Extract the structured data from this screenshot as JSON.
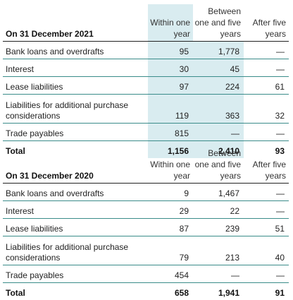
{
  "tables": [
    {
      "caption": "On 31 December 2021",
      "headers": {
        "within_one_year": "Within one year",
        "between_one_and_five_years": "Between one and five years",
        "after_five_years": "After five years"
      },
      "rows": [
        {
          "label": "Bank loans and overdrafts",
          "within": "95",
          "between": "1,778",
          "after": "—"
        },
        {
          "label": "Interest",
          "within": "30",
          "between": "45",
          "after": "—"
        },
        {
          "label": "Lease liabilities",
          "within": "97",
          "between": "224",
          "after": "61"
        },
        {
          "label": "Liabilities for additional purchase considerations",
          "within": "119",
          "between": "363",
          "after": "32"
        },
        {
          "label": "Trade payables",
          "within": "815",
          "between": "—",
          "after": "—"
        }
      ],
      "total": {
        "label": "Total",
        "within": "1,156",
        "between": "2,410",
        "after": "93"
      }
    },
    {
      "caption": "On 31 December 2020",
      "headers": {
        "within_one_year": "Within one year",
        "between_one_and_five_years": "Between one and five years",
        "after_five_years": "After five years"
      },
      "rows": [
        {
          "label": "Bank loans and overdrafts",
          "within": "9",
          "between": "1,467",
          "after": "—"
        },
        {
          "label": "Interest",
          "within": "29",
          "between": "22",
          "after": "—"
        },
        {
          "label": "Lease liabilities",
          "within": "87",
          "between": "239",
          "after": "51"
        },
        {
          "label": "Liabilities for additional purchase considerations",
          "within": "79",
          "between": "213",
          "after": "40"
        },
        {
          "label": "Trade payables",
          "within": "454",
          "between": "—",
          "after": "—"
        }
      ],
      "total": {
        "label": "Total",
        "within": "658",
        "between": "1,941",
        "after": "91"
      }
    }
  ],
  "colors": {
    "highlight": "#d9ecf0",
    "row_rule": "#3a8c8a",
    "header_rule": "#222222"
  }
}
